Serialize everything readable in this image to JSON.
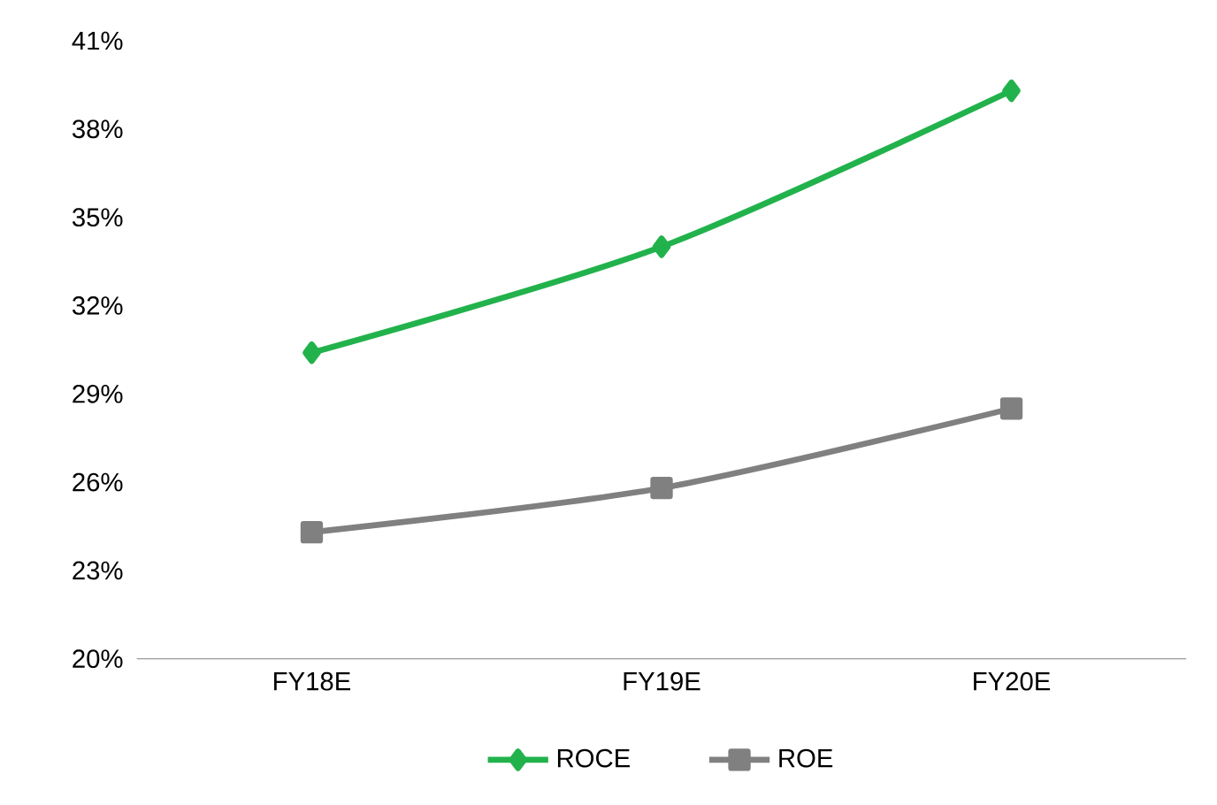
{
  "chart_data": {
    "type": "line",
    "categories": [
      "FY18E",
      "FY19E",
      "FY20E"
    ],
    "series": [
      {
        "name": "ROCE",
        "color": "#22b24c",
        "marker": "diamond",
        "values": [
          30.4,
          34.0,
          39.3
        ]
      },
      {
        "name": "ROE",
        "color": "#808080",
        "marker": "square",
        "values": [
          24.3,
          25.8,
          28.5
        ]
      }
    ],
    "ylim": [
      20,
      41
    ],
    "yticks": [
      {
        "value": 20,
        "label": "20%"
      },
      {
        "value": 23,
        "label": "23%"
      },
      {
        "value": 26,
        "label": "26%"
      },
      {
        "value": 29,
        "label": "29%"
      },
      {
        "value": 32,
        "label": "32%"
      },
      {
        "value": 35,
        "label": "35%"
      },
      {
        "value": 38,
        "label": "38%"
      },
      {
        "value": 41,
        "label": "41%"
      }
    ],
    "grid": false,
    "legend": "bottom"
  }
}
